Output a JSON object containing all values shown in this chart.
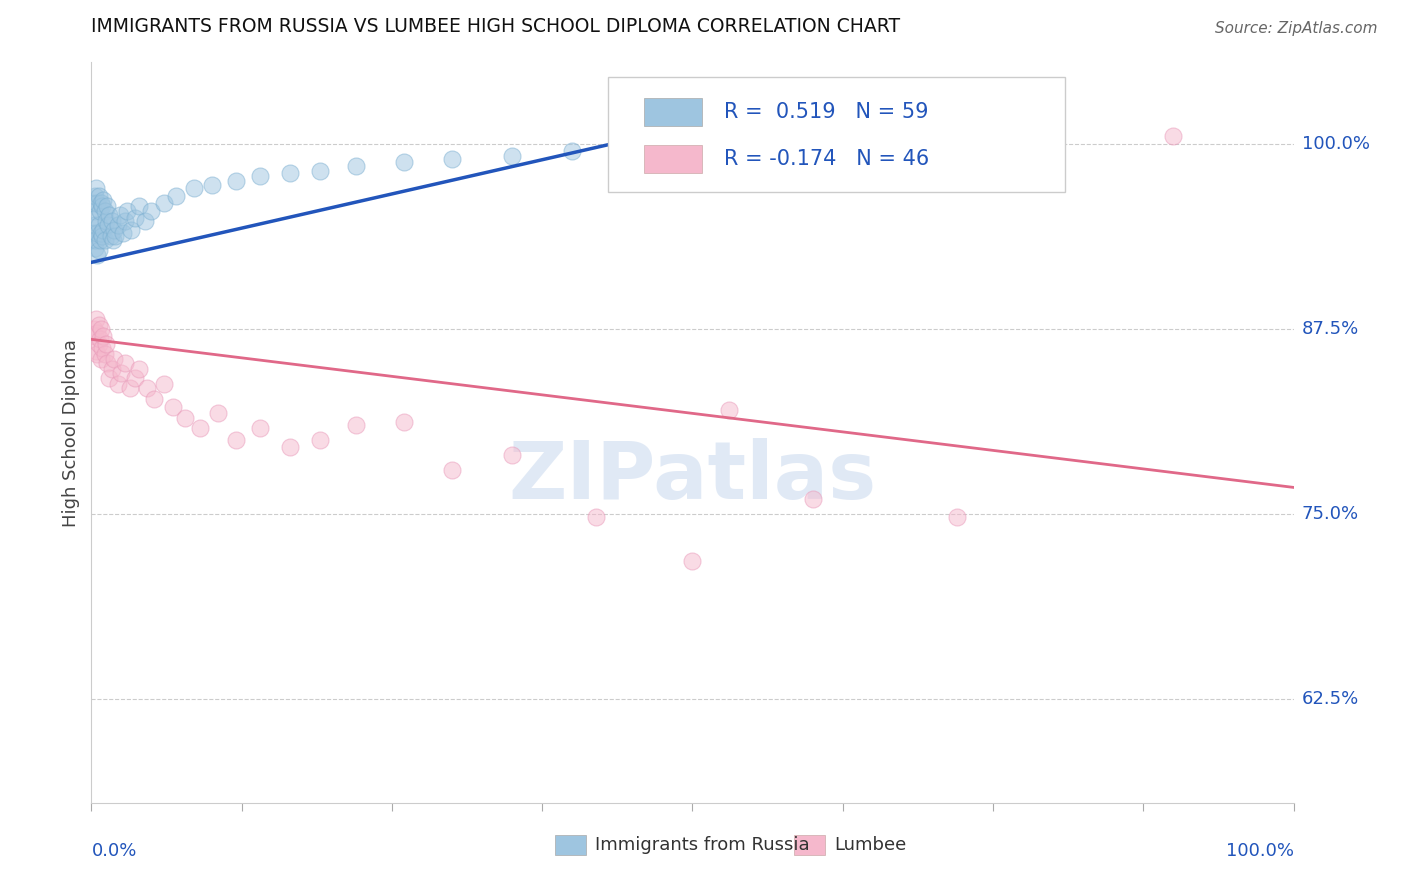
{
  "title": "IMMIGRANTS FROM RUSSIA VS LUMBEE HIGH SCHOOL DIPLOMA CORRELATION CHART",
  "source_text": "Source: ZipAtlas.com",
  "ylabel": "High School Diploma",
  "ytick_labels": [
    "62.5%",
    "75.0%",
    "87.5%",
    "100.0%"
  ],
  "ytick_values": [
    0.625,
    0.75,
    0.875,
    1.0
  ],
  "xlim": [
    0.0,
    1.0
  ],
  "ylim": [
    0.555,
    1.055
  ],
  "watermark": "ZIPatlas",
  "blue_scatter_x": [
    0.001,
    0.001,
    0.002,
    0.002,
    0.003,
    0.003,
    0.003,
    0.004,
    0.004,
    0.004,
    0.005,
    0.005,
    0.005,
    0.006,
    0.006,
    0.006,
    0.007,
    0.007,
    0.008,
    0.008,
    0.009,
    0.009,
    0.01,
    0.01,
    0.011,
    0.011,
    0.012,
    0.013,
    0.014,
    0.015,
    0.016,
    0.017,
    0.018,
    0.019,
    0.02,
    0.022,
    0.024,
    0.026,
    0.028,
    0.03,
    0.033,
    0.036,
    0.04,
    0.045,
    0.05,
    0.06,
    0.07,
    0.085,
    0.1,
    0.12,
    0.14,
    0.165,
    0.19,
    0.22,
    0.26,
    0.3,
    0.35,
    0.4,
    0.46
  ],
  "blue_scatter_y": [
    0.96,
    0.94,
    0.955,
    0.935,
    0.965,
    0.945,
    0.93,
    0.97,
    0.95,
    0.935,
    0.96,
    0.94,
    0.925,
    0.965,
    0.945,
    0.928,
    0.955,
    0.935,
    0.96,
    0.94,
    0.958,
    0.938,
    0.962,
    0.942,
    0.955,
    0.935,
    0.948,
    0.958,
    0.945,
    0.952,
    0.938,
    0.948,
    0.935,
    0.942,
    0.938,
    0.945,
    0.952,
    0.94,
    0.948,
    0.955,
    0.942,
    0.95,
    0.958,
    0.948,
    0.955,
    0.96,
    0.965,
    0.97,
    0.972,
    0.975,
    0.978,
    0.98,
    0.982,
    0.985,
    0.988,
    0.99,
    0.992,
    0.995,
    0.998
  ],
  "pink_scatter_x": [
    0.002,
    0.003,
    0.004,
    0.004,
    0.005,
    0.005,
    0.006,
    0.006,
    0.007,
    0.008,
    0.008,
    0.009,
    0.01,
    0.011,
    0.012,
    0.013,
    0.015,
    0.017,
    0.019,
    0.022,
    0.025,
    0.028,
    0.032,
    0.036,
    0.04,
    0.046,
    0.052,
    0.06,
    0.068,
    0.078,
    0.09,
    0.105,
    0.12,
    0.14,
    0.165,
    0.19,
    0.22,
    0.26,
    0.3,
    0.35,
    0.42,
    0.5,
    0.6,
    0.72,
    0.53,
    0.9
  ],
  "pink_scatter_y": [
    0.875,
    0.87,
    0.882,
    0.86,
    0.872,
    0.858,
    0.865,
    0.878,
    0.868,
    0.875,
    0.855,
    0.862,
    0.87,
    0.858,
    0.865,
    0.852,
    0.842,
    0.848,
    0.855,
    0.838,
    0.845,
    0.852,
    0.835,
    0.842,
    0.848,
    0.835,
    0.828,
    0.838,
    0.822,
    0.815,
    0.808,
    0.818,
    0.8,
    0.808,
    0.795,
    0.8,
    0.81,
    0.812,
    0.78,
    0.79,
    0.748,
    0.718,
    0.76,
    0.748,
    0.82,
    1.005
  ],
  "blue_line_x": [
    0.0,
    0.46
  ],
  "blue_line_y": [
    0.92,
    1.005
  ],
  "pink_line_x": [
    0.0,
    1.0
  ],
  "pink_line_y": [
    0.868,
    0.768
  ],
  "scatter_size": 150,
  "scatter_alpha": 0.5,
  "blue_color": "#9ec5e0",
  "pink_color": "#f5b8cc",
  "blue_edge_color": "#7aaed0",
  "pink_edge_color": "#e898b8",
  "blue_line_color": "#2255bb",
  "pink_line_color": "#e06888",
  "grid_color": "#cccccc",
  "title_color": "#111111",
  "source_color": "#666666",
  "legend_text_color": "#2255bb",
  "legend_r_blue": "0.519",
  "legend_n_blue": "59",
  "legend_r_pink": "-0.174",
  "legend_n_pink": "46",
  "ytick_color": "#2255bb",
  "xtick_color": "#2255bb"
}
